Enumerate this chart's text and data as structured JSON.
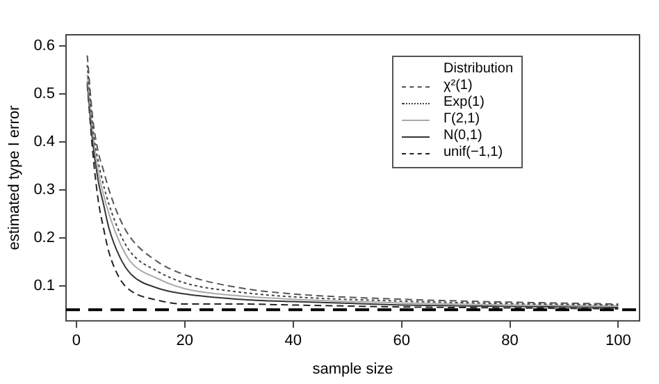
{
  "chart_data": {
    "type": "line",
    "xlabel": "sample size",
    "ylabel": "estimated type I error",
    "legend_title": "Distribution",
    "legend": "top right",
    "grid": false,
    "marker": "none",
    "xlim": [
      -1.92,
      103.92
    ],
    "xticks": [
      0,
      20,
      40,
      60,
      80,
      100
    ],
    "ylim": [
      0.027,
      0.623
    ],
    "yticks": [
      0.1,
      0.2,
      0.3,
      0.4,
      0.5,
      0.6
    ],
    "x": [
      2,
      3,
      4,
      5,
      6,
      8,
      10,
      15,
      20,
      30,
      40,
      60,
      80,
      100
    ],
    "series": [
      {
        "name": "χ²(1)",
        "color": "#555555",
        "line_style": "dashed",
        "values": [
          0.58,
          0.45,
          0.38,
          0.34,
          0.3,
          0.24,
          0.2,
          0.15,
          0.123,
          0.096,
          0.083,
          0.072,
          0.066,
          0.062
        ]
      },
      {
        "name": "Exp(1)",
        "color": "#444444",
        "line_style": "dotted",
        "values": [
          0.56,
          0.43,
          0.36,
          0.31,
          0.27,
          0.21,
          0.17,
          0.13,
          0.106,
          0.087,
          0.077,
          0.068,
          0.063,
          0.06
        ]
      },
      {
        "name": "Γ(2,1)",
        "color": "#aaaaaa",
        "line_style": "solid",
        "values": [
          0.54,
          0.42,
          0.34,
          0.29,
          0.25,
          0.19,
          0.15,
          0.115,
          0.094,
          0.079,
          0.072,
          0.064,
          0.06,
          0.058
        ]
      },
      {
        "name": "N(0,1)",
        "color": "#333333",
        "line_style": "solid",
        "values": [
          0.525,
          0.4,
          0.32,
          0.27,
          0.22,
          0.16,
          0.125,
          0.095,
          0.083,
          0.072,
          0.067,
          0.06,
          0.057,
          0.055
        ]
      },
      {
        "name": "unif(−1,1)",
        "color": "#222222",
        "line_style": "dashed",
        "values": [
          0.52,
          0.38,
          0.28,
          0.22,
          0.17,
          0.115,
          0.09,
          0.07,
          0.062,
          0.062,
          0.06,
          0.056,
          0.054,
          0.052
        ]
      }
    ],
    "ref_lines": [
      {
        "axis": "y",
        "value": 0.05,
        "color": "#000000",
        "line_style": "dashed"
      }
    ]
  }
}
